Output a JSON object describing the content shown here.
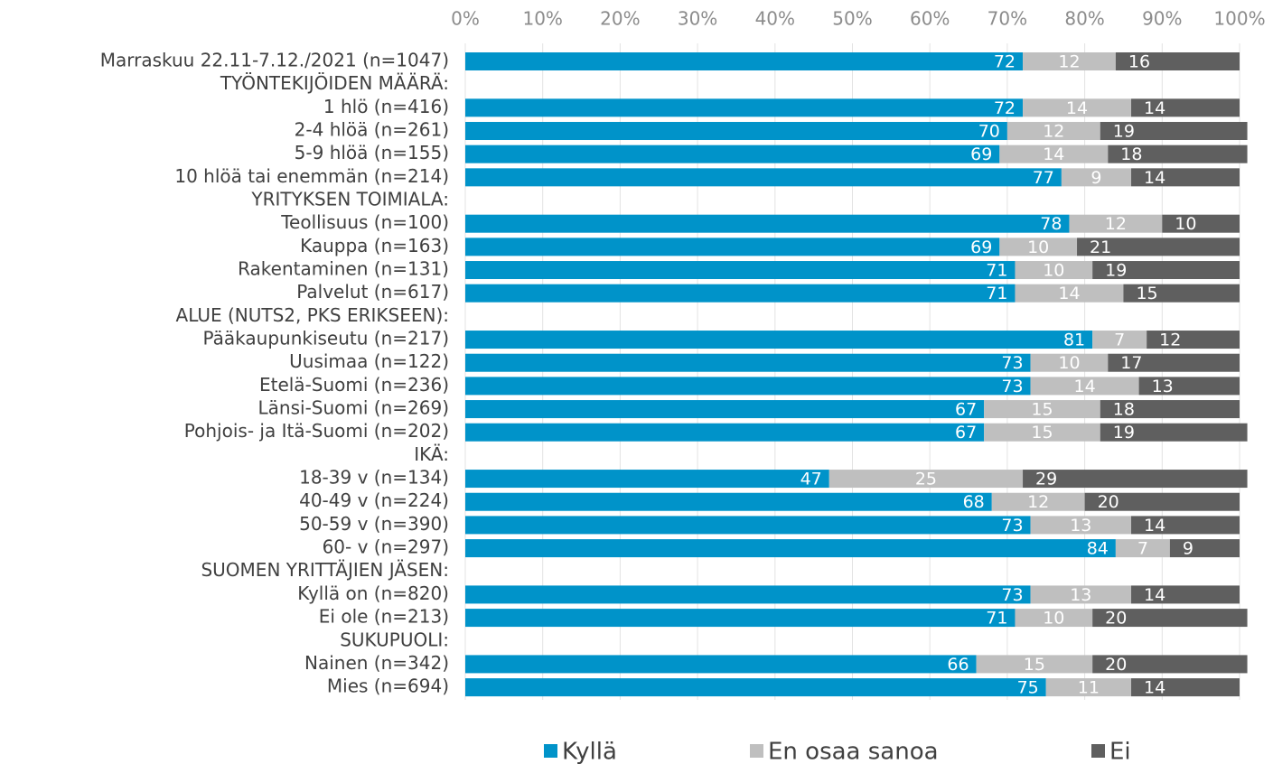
{
  "chart_data": {
    "type": "bar",
    "orientation": "horizontal",
    "stacked": true,
    "categories": [
      "Marraskuu 22.11-7.12./2021 (n=1047)",
      "TYÖNTEKIJÖIDEN MÄÄRÄ:",
      "1 hlö (n=416)",
      "2-4 hlöä (n=261)",
      "5-9 hlöä (n=155)",
      "10 hlöä tai enemmän (n=214)",
      "YRITYKSEN TOIMIALA:",
      "Teollisuus (n=100)",
      "Kauppa (n=163)",
      "Rakentaminen (n=131)",
      "Palvelut (n=617)",
      "ALUE (NUTS2, PKS ERIKSEEN):",
      "Pääkaupunkiseutu (n=217)",
      "Uusimaa (n=122)",
      "Etelä-Suomi (n=236)",
      "Länsi-Suomi (n=269)",
      "Pohjois- ja Itä-Suomi (n=202)",
      "IKÄ:",
      "18-39 v (n=134)",
      "40-49 v (n=224)",
      "50-59 v (n=390)",
      "60- v (n=297)",
      "SUOMEN YRITTÄJIEN JÄSEN:",
      "Kyllä on (n=820)",
      "Ei ole (n=213)",
      "SUKUPUOLI:",
      "Nainen (n=342)",
      "Mies (n=694)"
    ],
    "series": [
      {
        "name": "Kyllä",
        "color": "#0093c9",
        "values": [
          72,
          null,
          72,
          70,
          69,
          77,
          null,
          78,
          69,
          71,
          71,
          null,
          81,
          73,
          73,
          67,
          67,
          null,
          47,
          68,
          73,
          84,
          null,
          73,
          71,
          null,
          66,
          75
        ]
      },
      {
        "name": "En osaa sanoa",
        "color": "#bfbfbf",
        "values": [
          12,
          null,
          14,
          12,
          14,
          9,
          null,
          12,
          10,
          10,
          14,
          null,
          7,
          10,
          14,
          15,
          15,
          null,
          25,
          12,
          13,
          7,
          null,
          13,
          10,
          null,
          15,
          11
        ]
      },
      {
        "name": "Ei",
        "color": "#5f5f5f",
        "values": [
          16,
          null,
          14,
          19,
          18,
          14,
          null,
          10,
          21,
          19,
          15,
          null,
          12,
          17,
          13,
          18,
          19,
          null,
          29,
          20,
          14,
          9,
          null,
          14,
          20,
          null,
          20,
          14
        ]
      }
    ],
    "xlim": [
      0,
      100
    ],
    "xticks": [
      {
        "value": 0,
        "label": "0%"
      },
      {
        "value": 10,
        "label": "10%"
      },
      {
        "value": 20,
        "label": "20%"
      },
      {
        "value": 30,
        "label": "30%"
      },
      {
        "value": 40,
        "label": "40%"
      },
      {
        "value": 50,
        "label": "50%"
      },
      {
        "value": 60,
        "label": "60%"
      },
      {
        "value": 70,
        "label": "70%"
      },
      {
        "value": 80,
        "label": "80%"
      },
      {
        "value": 90,
        "label": "90%"
      },
      {
        "value": 100,
        "label": "100%"
      }
    ],
    "grid": true,
    "legend": "bottom"
  }
}
